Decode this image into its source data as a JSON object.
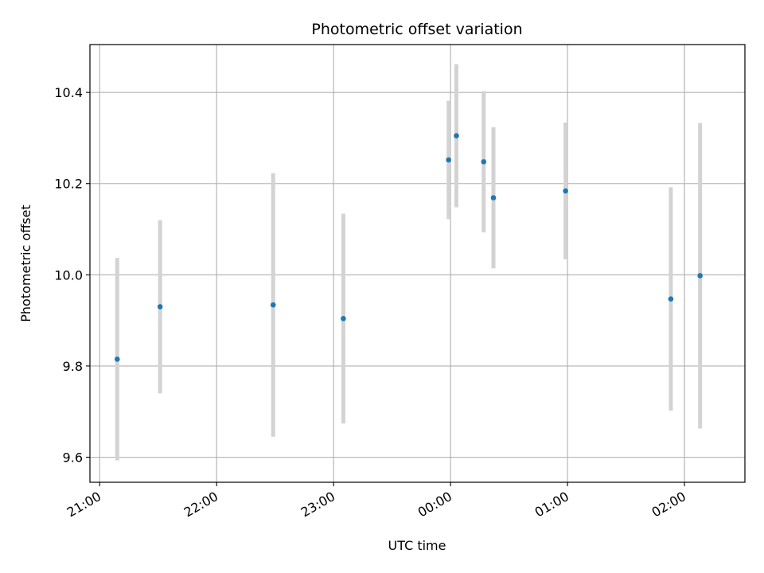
{
  "chart_data": {
    "type": "scatter",
    "title": "Photometric offset variation",
    "xlabel": "UTC time",
    "ylabel": "Photometric offset",
    "x_axis_kind": "time",
    "xlim": [
      "20:55",
      "02:31"
    ],
    "ylim": [
      9.545,
      10.505
    ],
    "x_ticks": [
      "21:00",
      "22:00",
      "23:00",
      "00:00",
      "01:00",
      "02:00"
    ],
    "y_ticks": [
      9.6,
      9.8,
      10.0,
      10.2,
      10.4
    ],
    "y_tick_labels": [
      "9.6",
      "9.8",
      "10.0",
      "10.2",
      "10.4"
    ],
    "grid": true,
    "point_color": "#1f77b4",
    "errorbar_color": "#d3d3d3",
    "series": [
      {
        "x": [
          "21:09",
          "21:31",
          "22:29",
          "23:05",
          "23:59",
          "00:03",
          "00:17",
          "00:22",
          "00:59",
          "01:53",
          "02:08"
        ],
        "y": [
          9.815,
          9.93,
          9.934,
          9.904,
          10.252,
          10.305,
          10.248,
          10.169,
          10.184,
          9.947,
          9.998
        ],
        "error": [
          0.222,
          0.19,
          0.289,
          0.23,
          0.13,
          0.157,
          0.155,
          0.155,
          0.15,
          0.245,
          0.335
        ]
      }
    ]
  }
}
